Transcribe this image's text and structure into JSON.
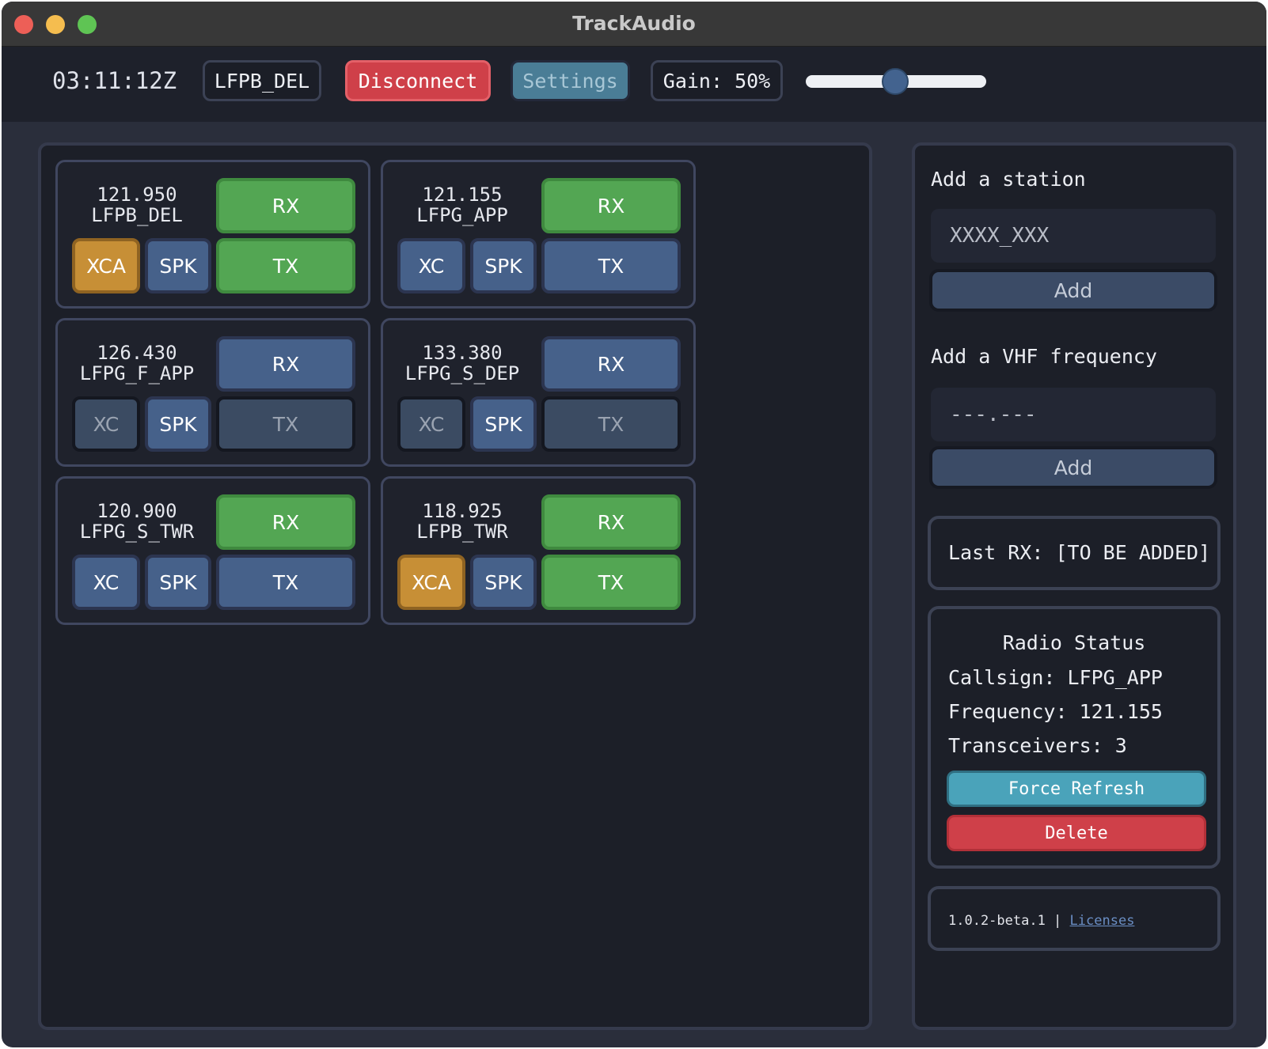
{
  "window": {
    "title": "TrackAudio"
  },
  "topbar": {
    "clock": "03:11:12Z",
    "callsign": "LFPB_DEL",
    "disconnect_label": "Disconnect",
    "settings_label": "Settings",
    "gain_label": "Gain: 50%",
    "gain_value": 0.5
  },
  "radios": [
    {
      "frequency": "121.950",
      "callsign": "LFPB_DEL",
      "rx": "RX",
      "tx": "TX",
      "xc": "XCA",
      "spk": "SPK"
    },
    {
      "frequency": "121.155",
      "callsign": "LFPG_APP",
      "rx": "RX",
      "tx": "TX",
      "xc": "XC",
      "spk": "SPK"
    },
    {
      "frequency": "126.430",
      "callsign": "LFPG_F_APP",
      "rx": "RX",
      "tx": "TX",
      "xc": "XC",
      "spk": "SPK"
    },
    {
      "frequency": "133.380",
      "callsign": "LFPG_S_DEP",
      "rx": "RX",
      "tx": "TX",
      "xc": "XC",
      "spk": "SPK"
    },
    {
      "frequency": "120.900",
      "callsign": "LFPG_S_TWR",
      "rx": "RX",
      "tx": "TX",
      "xc": "XC",
      "spk": "SPK"
    },
    {
      "frequency": "118.925",
      "callsign": "LFPB_TWR",
      "rx": "RX",
      "tx": "TX",
      "xc": "XCA",
      "spk": "SPK"
    }
  ],
  "sidebar": {
    "add_station_title": "Add a station",
    "station_placeholder": "XXXX_XXX",
    "add_label": "Add",
    "add_vhf_title": "Add a VHF frequency",
    "vhf_placeholder": "---.---",
    "last_rx": "Last RX: [TO BE ADDED]",
    "radio_status": {
      "title": "Radio Status",
      "callsign": "Callsign: LFPG_APP",
      "frequency": "Frequency: 121.155",
      "transceivers": "Transceivers: 3",
      "force_refresh": "Force Refresh",
      "delete": "Delete"
    },
    "footer": {
      "version": "1.0.2-beta.1 |",
      "licenses": "Licenses"
    }
  },
  "colors": {
    "active_green": "#53a653",
    "idle_blue": "#46618a",
    "xca_orange": "#c78f36",
    "disconnect_red": "#cf4049",
    "refresh_teal": "#4aa3ba"
  }
}
